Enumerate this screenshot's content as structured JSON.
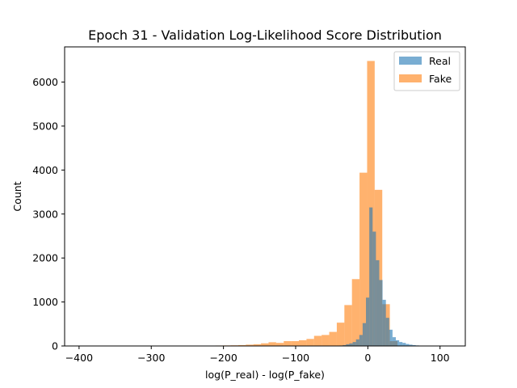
{
  "chart_data": {
    "type": "bar",
    "subtype": "histogram-overlay",
    "title": "Epoch 31 - Validation Log-Likelihood Score Distribution",
    "xlabel": "log(P_real) - log(P_fake)",
    "ylabel": "Count",
    "xlim": [
      -420,
      135
    ],
    "ylim": [
      0,
      6800
    ],
    "xticks": [
      -400,
      -300,
      -200,
      -100,
      0,
      100
    ],
    "yticks": [
      0,
      1000,
      2000,
      3000,
      4000,
      5000,
      6000
    ],
    "grid": false,
    "legend_position": "top-right",
    "series": [
      {
        "name": "Real",
        "color": "#1f77b4",
        "opacity": 0.6,
        "bin_width": 4.6,
        "bins": [
          {
            "x0": -39.4,
            "count": 10
          },
          {
            "x0": -34.8,
            "count": 20
          },
          {
            "x0": -30.2,
            "count": 40
          },
          {
            "x0": -25.6,
            "count": 60
          },
          {
            "x0": -21.0,
            "count": 90
          },
          {
            "x0": -16.4,
            "count": 150
          },
          {
            "x0": -11.8,
            "count": 250
          },
          {
            "x0": -7.2,
            "count": 520
          },
          {
            "x0": -2.6,
            "count": 1100
          },
          {
            "x0": 2.0,
            "count": 3150
          },
          {
            "x0": 6.6,
            "count": 2600
          },
          {
            "x0": 11.2,
            "count": 1950
          },
          {
            "x0": 15.8,
            "count": 1500
          },
          {
            "x0": 20.4,
            "count": 1050
          },
          {
            "x0": 25.0,
            "count": 640
          },
          {
            "x0": 29.6,
            "count": 370
          },
          {
            "x0": 34.2,
            "count": 200
          },
          {
            "x0": 38.8,
            "count": 130
          },
          {
            "x0": 43.4,
            "count": 90
          },
          {
            "x0": 48.0,
            "count": 70
          },
          {
            "x0": 52.6,
            "count": 45
          },
          {
            "x0": 57.2,
            "count": 30
          },
          {
            "x0": 61.8,
            "count": 20
          },
          {
            "x0": 66.4,
            "count": 12
          },
          {
            "x0": 71.0,
            "count": 8
          },
          {
            "x0": 75.6,
            "count": 5
          },
          {
            "x0": 80.2,
            "count": 3
          }
        ]
      },
      {
        "name": "Fake",
        "color": "#ff7f0e",
        "opacity": 0.6,
        "bin_width": 10.5,
        "bins": [
          {
            "x0": -400.0,
            "count": 2
          },
          {
            "x0": -389.5,
            "count": 0
          },
          {
            "x0": -379.0,
            "count": 1
          },
          {
            "x0": -368.5,
            "count": 0
          },
          {
            "x0": -358.0,
            "count": 1
          },
          {
            "x0": -347.5,
            "count": 0
          },
          {
            "x0": -337.0,
            "count": 1
          },
          {
            "x0": -326.5,
            "count": 0
          },
          {
            "x0": -316.0,
            "count": 2
          },
          {
            "x0": -305.5,
            "count": 1
          },
          {
            "x0": -295.0,
            "count": 2
          },
          {
            "x0": -284.5,
            "count": 2
          },
          {
            "x0": -274.0,
            "count": 3
          },
          {
            "x0": -263.5,
            "count": 3
          },
          {
            "x0": -253.0,
            "count": 4
          },
          {
            "x0": -242.5,
            "count": 5
          },
          {
            "x0": -232.0,
            "count": 6
          },
          {
            "x0": -221.5,
            "count": 8
          },
          {
            "x0": -211.0,
            "count": 10
          },
          {
            "x0": -200.5,
            "count": 12
          },
          {
            "x0": -190.0,
            "count": 15
          },
          {
            "x0": -179.5,
            "count": 20
          },
          {
            "x0": -169.0,
            "count": 30
          },
          {
            "x0": -158.5,
            "count": 40
          },
          {
            "x0": -148.0,
            "count": 60
          },
          {
            "x0": -137.5,
            "count": 85
          },
          {
            "x0": -127.0,
            "count": 70
          },
          {
            "x0": -116.5,
            "count": 110
          },
          {
            "x0": -106.0,
            "count": 110
          },
          {
            "x0": -95.5,
            "count": 130
          },
          {
            "x0": -85.0,
            "count": 160
          },
          {
            "x0": -74.5,
            "count": 230
          },
          {
            "x0": -64.0,
            "count": 250
          },
          {
            "x0": -53.5,
            "count": 320
          },
          {
            "x0": -43.0,
            "count": 530
          },
          {
            "x0": -32.5,
            "count": 930
          },
          {
            "x0": -22.0,
            "count": 1520
          },
          {
            "x0": -11.5,
            "count": 3940
          },
          {
            "x0": -1.0,
            "count": 6480
          },
          {
            "x0": 9.5,
            "count": 3550
          },
          {
            "x0": 20.0,
            "count": 950
          },
          {
            "x0": 30.5,
            "count": 110
          },
          {
            "x0": 41.0,
            "count": 10
          }
        ]
      }
    ]
  }
}
